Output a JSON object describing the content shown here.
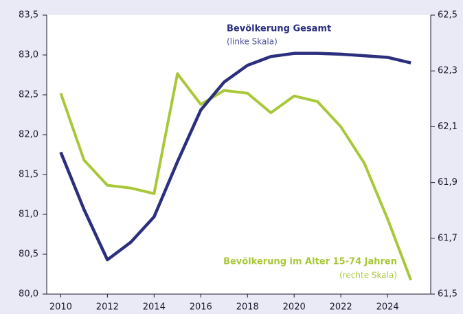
{
  "chart_data": {
    "type": "line",
    "x": [
      2010,
      2011,
      2012,
      2013,
      2014,
      2015,
      2016,
      2017,
      2018,
      2019,
      2020,
      2021,
      2022,
      2023,
      2024,
      2025
    ],
    "xlim": [
      2009.4,
      2025.85
    ],
    "xticks": [
      2010,
      2012,
      2014,
      2016,
      2018,
      2020,
      2022,
      2024
    ],
    "ylim": [
      80.0,
      83.5
    ],
    "yticks": [
      {
        "value": 80.0,
        "label": "80,0"
      },
      {
        "value": 80.5,
        "label": "80,5"
      },
      {
        "value": 81.0,
        "label": "81,0"
      },
      {
        "value": 81.5,
        "label": "81,5"
      },
      {
        "value": 82.0,
        "label": "82,0"
      },
      {
        "value": 82.5,
        "label": "82,5"
      },
      {
        "value": 83.0,
        "label": "83,0"
      },
      {
        "value": 83.5,
        "label": "83,5"
      }
    ],
    "y2lim": [
      61.5,
      62.5
    ],
    "y2ticks": [
      {
        "value": 61.5,
        "label": "61,5"
      },
      {
        "value": 61.7,
        "label": "61,7"
      },
      {
        "value": 61.9,
        "label": "61,9"
      },
      {
        "value": 62.1,
        "label": "62,1"
      },
      {
        "value": 62.3,
        "label": "62,3"
      },
      {
        "value": 62.5,
        "label": "62,5"
      }
    ],
    "series": [
      {
        "name": "Bevölkerung Gesamt",
        "note": "(linke Skala)",
        "color": "#2b2f7e",
        "values": [
          81.78,
          81.06,
          80.43,
          80.65,
          80.97,
          81.66,
          82.31,
          82.66,
          82.87,
          82.98,
          83.02,
          83.02,
          83.01,
          82.99,
          82.97,
          82.9
        ]
      },
      {
        "name": "Bevölkerung im Alter 15-74 Jahren",
        "note": "(rechte Skala)",
        "color": "#a8c83a",
        "axis": "y2",
        "values": [
          62.22,
          61.98,
          61.89,
          61.88,
          61.86,
          62.29,
          62.18,
          62.23,
          62.22,
          62.15,
          62.21,
          62.19,
          62.1,
          61.97,
          61.77,
          61.55
        ]
      }
    ]
  }
}
